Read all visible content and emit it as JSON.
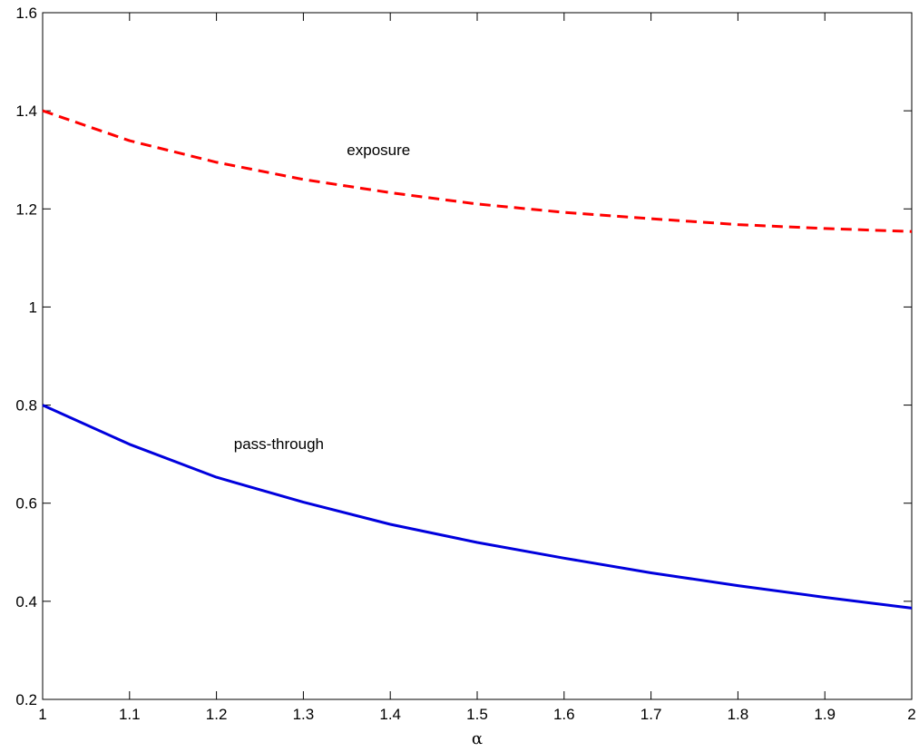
{
  "chart_data": {
    "type": "line",
    "title": "",
    "xlabel": "α",
    "ylabel": "",
    "xlim": [
      1,
      2
    ],
    "ylim": [
      0.2,
      1.6
    ],
    "x_ticks": [
      "1",
      "1.1",
      "1.2",
      "1.3",
      "1.4",
      "1.5",
      "1.6",
      "1.7",
      "1.8",
      "1.9",
      "2"
    ],
    "y_ticks": [
      "0.2",
      "0.4",
      "0.6",
      "0.8",
      "1",
      "1.2",
      "1.4",
      "1.6"
    ],
    "grid": false,
    "x": [
      1.0,
      1.1,
      1.2,
      1.3,
      1.4,
      1.5,
      1.6,
      1.7,
      1.8,
      1.9,
      2.0
    ],
    "series": [
      {
        "name": "exposure",
        "color": "#ff0000",
        "style": "dashed",
        "values": [
          1.4,
          1.339,
          1.295,
          1.26,
          1.233,
          1.21,
          1.193,
          1.18,
          1.168,
          1.16,
          1.154
        ]
      },
      {
        "name": "pass-through",
        "color": "#0000dd",
        "style": "solid",
        "values": [
          0.8,
          0.72,
          0.653,
          0.602,
          0.557,
          0.52,
          0.488,
          0.458,
          0.432,
          0.408,
          0.386
        ]
      }
    ],
    "annotations": [
      {
        "text": "exposure",
        "x": 1.35,
        "y": 1.31
      },
      {
        "text": "pass-through",
        "x": 1.22,
        "y": 0.71
      }
    ]
  }
}
